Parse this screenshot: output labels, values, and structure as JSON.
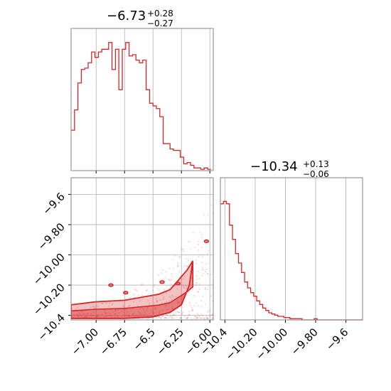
{
  "chart_data": [
    {
      "type": "histogram",
      "panel": "top-left",
      "title": {
        "median": "−6.73",
        "plus": "+0.28",
        "minus": "−0.27"
      },
      "xlim": [
        -7.22,
        -5.97
      ],
      "xticks": [
        -7.0,
        -6.75,
        -6.5,
        -6.25,
        -6.0
      ],
      "bin_edges": [
        -7.22,
        -7.19,
        -7.16,
        -7.13,
        -7.1,
        -7.07,
        -7.04,
        -7.01,
        -6.98,
        -6.95,
        -6.92,
        -6.89,
        -6.86,
        -6.83,
        -6.8,
        -6.77,
        -6.74,
        -6.71,
        -6.68,
        -6.65,
        -6.62,
        -6.59,
        -6.56,
        -6.53,
        -6.5,
        -6.47,
        -6.44,
        -6.41,
        -6.38,
        -6.35,
        -6.32,
        -6.29,
        -6.26,
        -6.23,
        -6.2,
        -6.17,
        -6.14,
        -6.11,
        -6.08,
        -6.05,
        -6.02,
        -5.99
      ],
      "counts": [
        30,
        45,
        65,
        75,
        76,
        80,
        88,
        84,
        88,
        90,
        90,
        95,
        75,
        90,
        60,
        90,
        95,
        85,
        86,
        82,
        80,
        82,
        60,
        50,
        48,
        46,
        40,
        20,
        20,
        16,
        15,
        15,
        10,
        5,
        6,
        4,
        2,
        2,
        1,
        2,
        1
      ],
      "color": "#d62728"
    },
    {
      "type": "contour+scatter",
      "panel": "bottom-left",
      "xlim": [
        -7.22,
        -5.97
      ],
      "ylim": [
        -10.43,
        -9.49
      ],
      "xticks": [
        -7.0,
        -6.75,
        -6.5,
        -6.25,
        -6.0
      ],
      "yticks": [
        -10.4,
        -10.2,
        -10.0,
        -9.8,
        -9.6
      ],
      "color": "#d62728",
      "contour_lower_edge": [
        [
          -7.22,
          -10.42
        ],
        [
          -7.0,
          -10.42
        ],
        [
          -6.75,
          -10.42
        ],
        [
          -6.5,
          -10.41
        ],
        [
          -6.35,
          -10.38
        ],
        [
          -6.25,
          -10.33
        ],
        [
          -6.18,
          -10.2
        ],
        [
          -6.15,
          -10.04
        ]
      ],
      "contour_upper_edge": [
        [
          -7.22,
          -10.33
        ],
        [
          -7.0,
          -10.31
        ],
        [
          -6.75,
          -10.3
        ],
        [
          -6.6,
          -10.28
        ],
        [
          -6.45,
          -10.26
        ],
        [
          -6.35,
          -10.23
        ],
        [
          -6.28,
          -10.17
        ],
        [
          -6.2,
          -10.1
        ],
        [
          -6.15,
          -10.04
        ]
      ]
    },
    {
      "type": "histogram",
      "panel": "bottom-right",
      "title": {
        "median": "−10.34",
        "plus": "+0.13",
        "minus": "−0.06"
      },
      "xlim": [
        -10.43,
        -9.49
      ],
      "xticks": [
        -10.4,
        -10.2,
        -10.0,
        -9.8,
        -9.6
      ],
      "bin_edges": [
        -10.43,
        -10.41,
        -10.39,
        -10.37,
        -10.35,
        -10.33,
        -10.31,
        -10.29,
        -10.27,
        -10.25,
        -10.23,
        -10.21,
        -10.19,
        -10.17,
        -10.15,
        -10.13,
        -10.11,
        -10.09,
        -10.07,
        -10.05,
        -10.03,
        -10.01,
        -9.99,
        -9.97,
        -9.95,
        -9.93,
        -9.91,
        -9.89,
        -9.87,
        -9.85,
        -9.83,
        -9.81,
        -9.79,
        -9.77,
        -9.75,
        -9.73,
        -9.71,
        -9.69,
        -9.67,
        -9.65,
        -9.63,
        -9.61,
        -9.59,
        -9.57,
        -9.55,
        -9.53,
        -9.51,
        -9.49
      ],
      "counts": [
        98,
        100,
        98,
        80,
        68,
        56,
        48,
        40,
        32,
        27,
        23,
        20,
        16,
        13,
        10,
        8,
        6,
        5,
        4,
        3,
        3,
        2,
        2,
        1,
        1,
        1,
        1,
        0,
        0,
        0,
        0,
        1,
        0,
        0,
        0,
        0,
        0,
        0,
        0,
        0,
        0,
        0,
        0,
        0,
        0,
        0,
        0
      ],
      "color": "#d62728"
    }
  ]
}
